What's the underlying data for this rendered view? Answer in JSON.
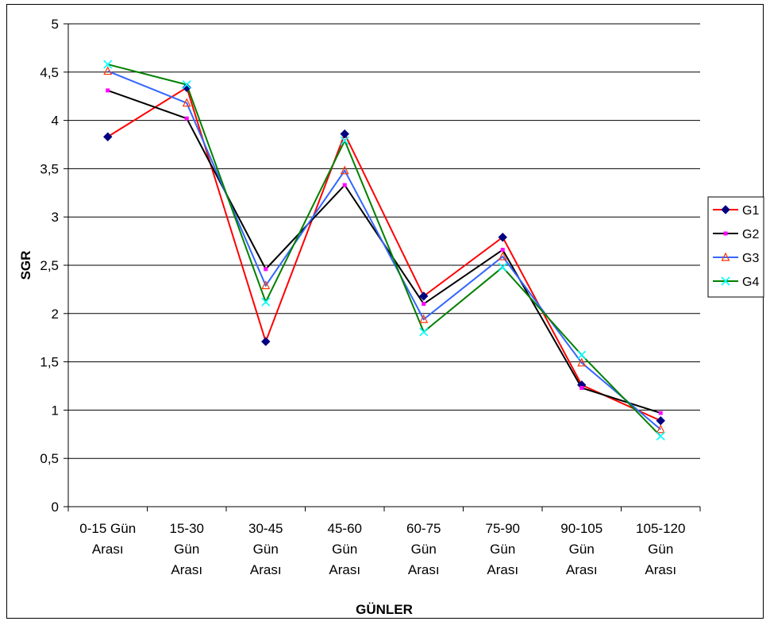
{
  "chart_data": {
    "type": "line",
    "title": "",
    "xlabel": "GÜNLER",
    "ylabel": "SGR",
    "categories": [
      [
        "0-15 Gün",
        "Arası"
      ],
      [
        "15-30",
        "Gün",
        "Arası"
      ],
      [
        "30-45",
        "Gün",
        "Arası"
      ],
      [
        "45-60",
        "Gün",
        "Arası"
      ],
      [
        "60-75",
        "Gün",
        "Arası"
      ],
      [
        "75-90",
        "Gün",
        "Arası"
      ],
      [
        "90-105",
        "Gün",
        "Arası"
      ],
      [
        "105-120",
        "Gün",
        "Arası"
      ]
    ],
    "ylim": [
      0,
      5
    ],
    "yticks": [
      0,
      0.5,
      1,
      1.5,
      2,
      2.5,
      3,
      3.5,
      4,
      4.5,
      5
    ],
    "ytick_labels": [
      "0",
      "0,5",
      "1",
      "1,5",
      "2",
      "2,5",
      "3",
      "3,5",
      "4",
      "4,5",
      "5"
    ],
    "grid": "horizontal",
    "legend_position": "right",
    "series": [
      {
        "name": "G1",
        "color": "#ff0000",
        "marker_color": "#000080",
        "marker": "diamond",
        "values": [
          3.83,
          4.34,
          1.71,
          3.86,
          2.18,
          2.79,
          1.26,
          0.89
        ]
      },
      {
        "name": "G2",
        "color": "#000000",
        "marker_color": "#ff00ff",
        "marker": "square",
        "values": [
          4.31,
          4.02,
          2.46,
          3.33,
          2.1,
          2.66,
          1.23,
          0.97
        ]
      },
      {
        "name": "G3",
        "color": "#3366ff",
        "marker_color": "#ff3300",
        "marker": "triangle",
        "values": [
          4.51,
          4.18,
          2.29,
          3.48,
          1.94,
          2.59,
          1.49,
          0.8
        ]
      },
      {
        "name": "G4",
        "color": "#008000",
        "marker_color": "#00ffff",
        "marker": "x",
        "values": [
          4.58,
          4.37,
          2.12,
          3.79,
          1.81,
          2.48,
          1.57,
          0.73
        ]
      }
    ]
  }
}
